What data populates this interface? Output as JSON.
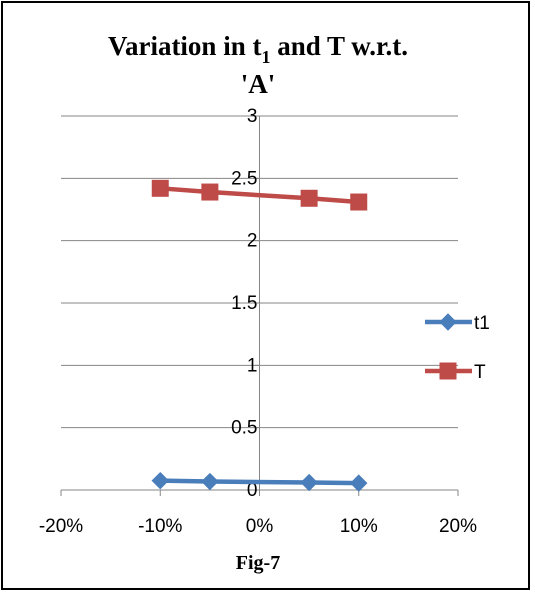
{
  "chart_data": {
    "type": "line",
    "title": {
      "main": "Variation in t",
      "sub": "1",
      "rest": " and T w.r.t.",
      "line2": "'A'"
    },
    "xlabel": "Fig-7",
    "x": [
      -0.1,
      -0.05,
      0.05,
      0.1
    ],
    "xlim": [
      -0.2,
      0.2
    ],
    "ylim": [
      0,
      3
    ],
    "x_ticks": [
      "-20%",
      "-10%",
      "0%",
      "10%",
      "20%"
    ],
    "y_ticks": [
      "0",
      "0.5",
      "1",
      "1.5",
      "2",
      "2.5",
      "3"
    ],
    "grid": "horizontal",
    "legend_position": "right",
    "series": [
      {
        "name": "t1",
        "values": [
          0.075,
          0.068,
          0.06,
          0.055
        ],
        "color": "#4a7ebb",
        "marker": "diamond"
      },
      {
        "name": "T",
        "values": [
          2.42,
          2.39,
          2.34,
          2.31
        ],
        "color": "#be4b48",
        "marker": "square"
      }
    ]
  }
}
